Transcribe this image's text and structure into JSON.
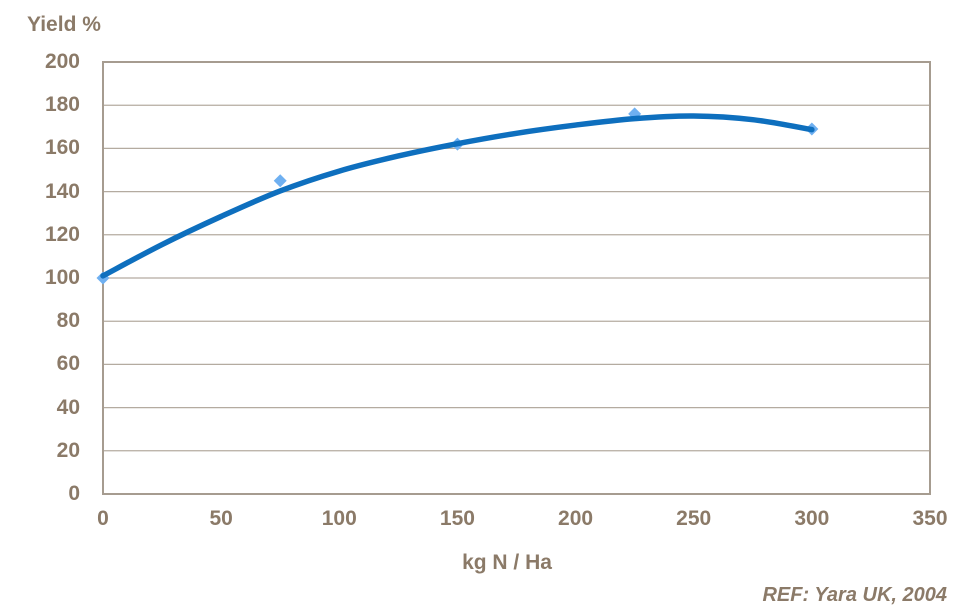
{
  "chart_data": {
    "type": "scatter",
    "title": "Yield %",
    "ylabel": "Yield %",
    "xlabel": "kg N / Ha",
    "annotation": "REF: Yara UK, 2004",
    "x": [
      0,
      75,
      150,
      225,
      300
    ],
    "y": [
      100,
      145,
      162,
      176,
      169
    ],
    "xlim": [
      0,
      350
    ],
    "ylim": [
      0,
      200
    ],
    "x_ticks": [
      0,
      50,
      100,
      150,
      200,
      250,
      300,
      350
    ],
    "y_ticks": [
      0,
      20,
      40,
      60,
      80,
      100,
      120,
      140,
      160,
      180,
      200
    ],
    "grid": "horizontal",
    "legend": "none",
    "marker_shape": "diamond",
    "trendline": {
      "type": "smooth-polynomial-2nd-order",
      "x": [
        0,
        25,
        50,
        75,
        100,
        125,
        150,
        175,
        200,
        225,
        250,
        275,
        300
      ],
      "y": [
        101,
        115.5,
        128.5,
        140.3,
        149.5,
        156.5,
        162.2,
        167,
        170.8,
        173.8,
        175,
        173.3,
        168.7
      ]
    },
    "colors": {
      "curve": "#0e6fbe",
      "marker": "#6fb0f1",
      "axis_text": "#8b7a68",
      "frame": "#a69c90",
      "gridline": "#b4aba0",
      "background": "#ffffff"
    }
  }
}
